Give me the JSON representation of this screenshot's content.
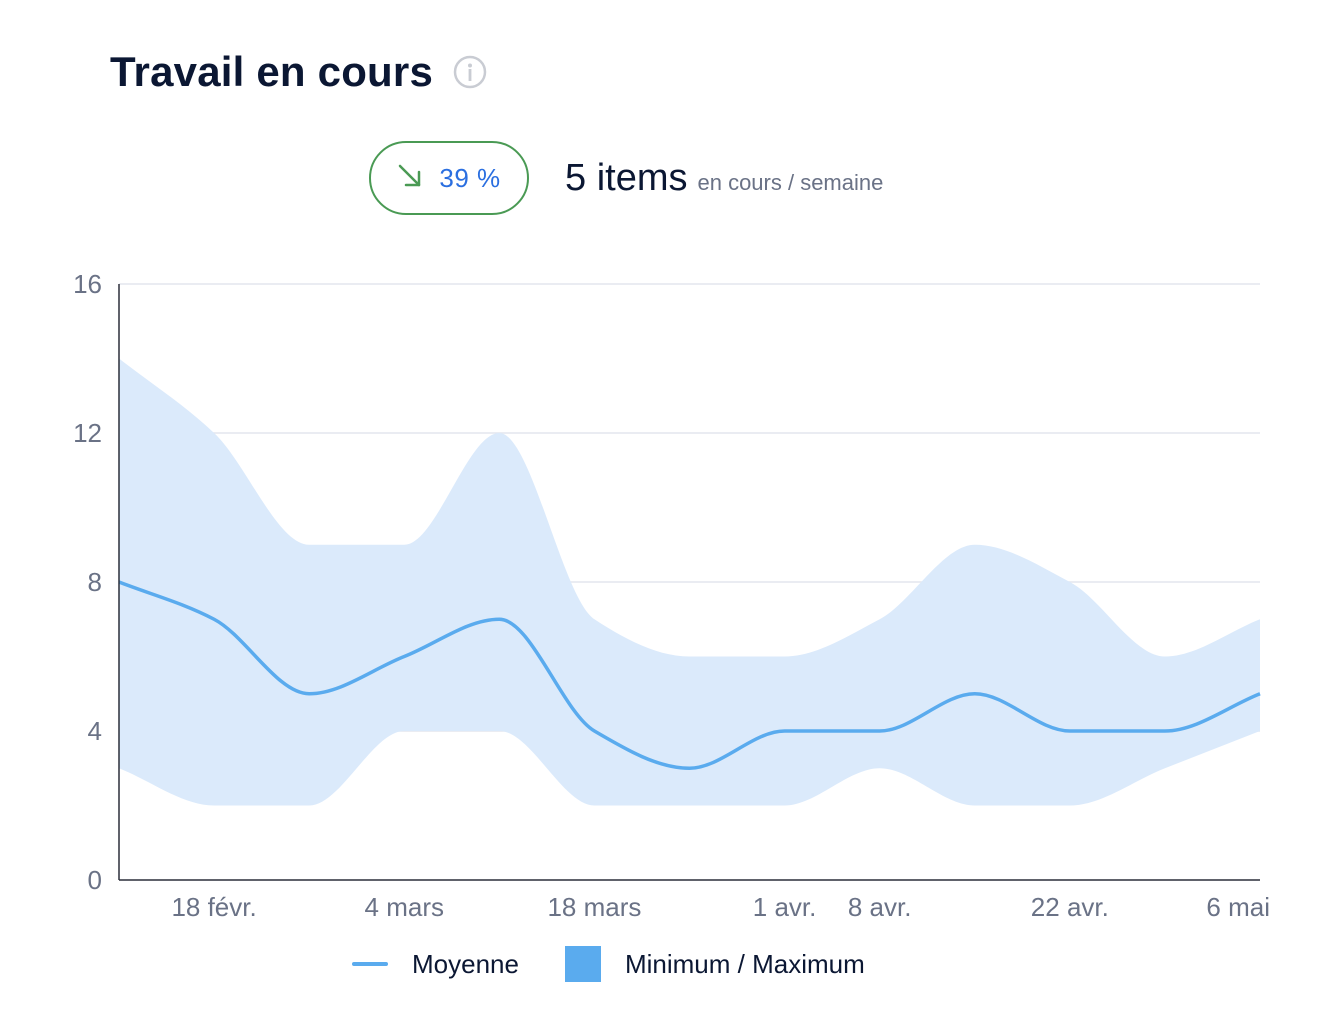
{
  "header": {
    "title": "Travail en cours",
    "info_icon": "info-circle-icon"
  },
  "summary": {
    "trend_icon": "arrow-down-right-icon",
    "trend_percent": "39 %",
    "trend_color": "#4a9a54",
    "value": "5 items",
    "unit": "en cours / semaine"
  },
  "colors": {
    "line": "#5aabee",
    "band": "#dbeafb",
    "grid": "#e3e6ee",
    "axis": "#2b2f3a"
  },
  "chart_data": {
    "type": "area",
    "title": "Travail en cours",
    "xlabel": "",
    "ylabel": "",
    "ylim": [
      0,
      16
    ],
    "y_ticks": [
      "0",
      "4",
      "8",
      "12",
      "16"
    ],
    "x_tick_labels": [
      "18 févr.",
      "4 mars",
      "18 mars",
      "1 avr.",
      "8 avr.",
      "22 avr.",
      "6 mai"
    ],
    "x": [
      "11 févr.",
      "18 févr.",
      "25 févr.",
      "4 mars",
      "11 mars",
      "18 mars",
      "25 mars",
      "1 avr.",
      "8 avr.",
      "15 avr.",
      "22 avr.",
      "29 avr.",
      "6 mai"
    ],
    "series": [
      {
        "name": "Moyenne",
        "values": [
          8,
          7,
          5,
          6,
          7,
          4,
          3,
          4,
          4,
          5,
          4,
          4,
          5
        ]
      },
      {
        "name": "Minimum / Maximum",
        "min": [
          3,
          2,
          2,
          4,
          4,
          2,
          2,
          2,
          3,
          2,
          2,
          3,
          4
        ],
        "max": [
          14,
          12,
          9,
          9,
          12,
          7,
          6,
          6,
          7,
          9,
          8,
          6,
          7
        ]
      }
    ],
    "grid": true,
    "legend_position": "bottom"
  },
  "legend": {
    "line_label": "Moyenne",
    "band_label": "Minimum / Maximum"
  }
}
